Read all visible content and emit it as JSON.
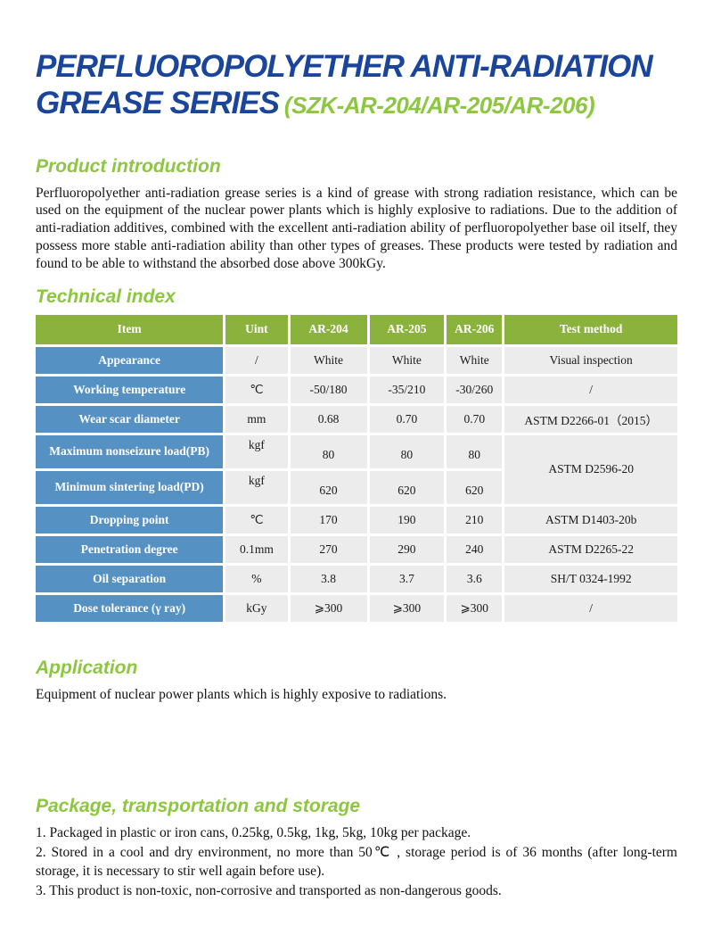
{
  "title": {
    "line1": "PERFLUOROPOLYETHER ANTI-RADIATION",
    "line2": "GREASE SERIES",
    "suffix": "(SZK-AR-204/AR-205/AR-206)"
  },
  "sections": {
    "intro": {
      "heading": "Product introduction",
      "body": "Perfluoropolyether anti-radiation grease series is a kind of grease with strong radiation resistance, which can be used on the equipment of the nuclear power plants which is highly explosive to radiations. Due to the addition of anti-radiation additives, combined with the excellent anti-radiation ability of perfluoropolyether base oil itself, they possess more stable anti-radiation ability than other types of greases. These products were tested by radiation and found to be able to withstand the absorbed dose above 300kGy."
    },
    "technical": {
      "heading": "Technical index",
      "table": {
        "headers": [
          "Item",
          "Uint",
          "AR-204",
          "AR-205",
          "AR-206",
          "Test method"
        ],
        "col_widths": [
          "29.5%",
          "10%",
          "12.3%",
          "12%",
          "9%",
          "27.2%"
        ],
        "rows": [
          {
            "item": "Appearance",
            "unit": "/",
            "values": [
              "White",
              "White",
              "White"
            ],
            "test": "Visual inspection"
          },
          {
            "item": "Working temperature",
            "unit": "℃",
            "values": [
              "-50/180",
              "-35/210",
              "-30/260"
            ],
            "test": "/"
          },
          {
            "item": "Wear scar diameter",
            "unit": "mm",
            "values": [
              "0.68",
              "0.70",
              "0.70"
            ],
            "test": "ASTM D2266-01（2015）"
          },
          {
            "item": "Maximum nonseizure load(PB)",
            "unit": "kgf",
            "values": [
              "80",
              "80",
              "80"
            ],
            "test": "ASTM D2596-20",
            "test_rowspan": 2
          },
          {
            "item": "Minimum sintering load(PD)",
            "unit": "kgf",
            "values": [
              "620",
              "620",
              "620"
            ],
            "test": null
          },
          {
            "item": "Dropping point",
            "unit": "℃",
            "values": [
              "170",
              "190",
              "210"
            ],
            "test": "ASTM D1403-20b"
          },
          {
            "item": "Penetration degree",
            "unit": "0.1mm",
            "values": [
              "270",
              "290",
              "240"
            ],
            "test": "ASTM D2265-22"
          },
          {
            "item": "Oil separation",
            "unit": "%",
            "values": [
              "3.8",
              "3.7",
              "3.6"
            ],
            "test": "SH/T 0324-1992"
          },
          {
            "item": "Dose tolerance (γ ray)",
            "unit": "kGy",
            "values": [
              "⩾300",
              "⩾300",
              "⩾300"
            ],
            "test": "/"
          }
        ]
      }
    },
    "application": {
      "heading": "Application",
      "body": "Equipment of nuclear power plants which is highly exposive to radiations."
    },
    "package": {
      "heading": "Package, transportation and storage",
      "items": [
        "1. Packaged in plastic or iron cans, 0.25kg, 0.5kg, 1kg, 5kg, 10kg per package.",
        "2. Stored in a cool and dry environment, no more than 50℃ , storage period is of 36 months (after long-term storage, it is necessary to stir well again before use).",
        "3. This product is non-toxic, non-corrosive and transported as non-dangerous goods."
      ]
    }
  },
  "colors": {
    "title_blue": "#1B459B",
    "accent_green": "#8DC63F",
    "table_header_green": "#8CB23E",
    "table_item_blue": "#5591C2",
    "cell_gray": "#ECECEC"
  }
}
